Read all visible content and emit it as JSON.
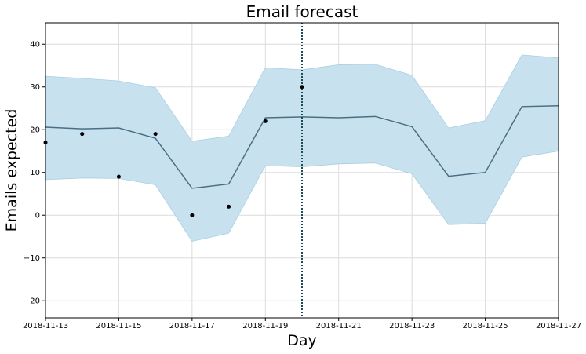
{
  "chart_data": {
    "type": "line",
    "title": "Email forecast",
    "xlabel": "Day",
    "ylabel": "Emails expected",
    "x_dates": [
      "2018-11-13",
      "2018-11-14",
      "2018-11-15",
      "2018-11-16",
      "2018-11-17",
      "2018-11-18",
      "2018-11-19",
      "2018-11-20",
      "2018-11-21",
      "2018-11-22",
      "2018-11-23",
      "2018-11-24",
      "2018-11-25",
      "2018-11-26",
      "2018-11-27"
    ],
    "xlim": [
      "2018-11-13",
      "2018-11-27"
    ],
    "ylim": [
      -24,
      45
    ],
    "x_ticks": [
      "2018-11-13",
      "2018-11-15",
      "2018-11-17",
      "2018-11-19",
      "2018-11-21",
      "2018-11-23",
      "2018-11-25",
      "2018-11-27"
    ],
    "y_ticks": [
      -20,
      -10,
      0,
      10,
      20,
      30,
      40
    ],
    "grid": true,
    "series": [
      {
        "kind": "forecast-line",
        "color": "#4a6f84",
        "values": [
          20.6,
          20.2,
          20.4,
          18.0,
          6.3,
          7.3,
          22.8,
          23.0,
          22.8,
          23.1,
          20.7,
          9.1,
          10.0,
          25.4,
          25.6
        ]
      },
      {
        "kind": "uncertainty-band",
        "color": "#c8e1ee",
        "upper": [
          32.5,
          32.0,
          31.4,
          29.8,
          17.3,
          18.5,
          34.5,
          34.0,
          35.2,
          35.3,
          32.7,
          20.4,
          22.1,
          37.5,
          36.8
        ],
        "lower": [
          8.3,
          8.7,
          8.6,
          7.1,
          -6.1,
          -4.2,
          11.6,
          11.3,
          12.0,
          12.2,
          9.7,
          -2.2,
          -1.9,
          13.6,
          15.0
        ]
      },
      {
        "kind": "observed-points",
        "color": "#000000",
        "x": [
          "2018-11-13",
          "2018-11-14",
          "2018-11-15",
          "2018-11-16",
          "2018-11-17",
          "2018-11-18",
          "2018-11-19",
          "2018-11-20"
        ],
        "values": [
          17,
          19,
          9,
          19,
          0,
          2,
          22,
          30
        ]
      }
    ],
    "vertical_marker": {
      "x": "2018-11-20",
      "style": "dotted",
      "color": "#1b4a5a"
    }
  }
}
